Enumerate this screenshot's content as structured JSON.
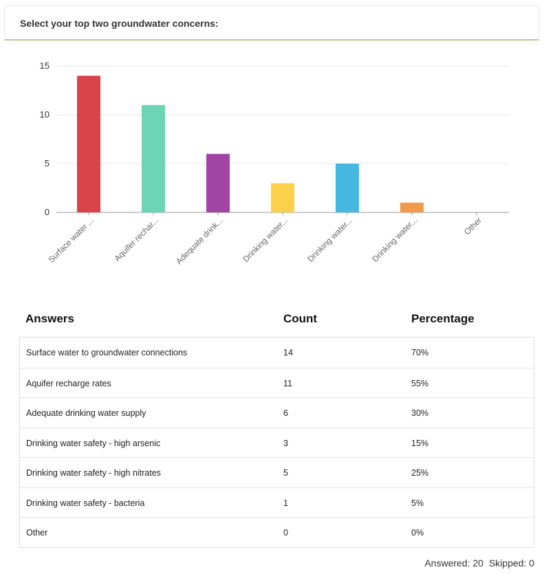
{
  "question": {
    "title": "Select your top two groundwater concerns:"
  },
  "chart_data": {
    "type": "bar",
    "categories": [
      "Surface water ...",
      "Aquifer rechar...",
      "Adequate drink...",
      "Drinking water...",
      "Drinking water...",
      "Drinking water...",
      "Other"
    ],
    "values": [
      14,
      11,
      6,
      3,
      5,
      1,
      0
    ],
    "colors": [
      "#d9434a",
      "#6dd4b6",
      "#a045a4",
      "#fdd14b",
      "#46b9e0",
      "#f2994a",
      "#cccccc"
    ],
    "yticks": [
      0,
      5,
      10,
      15
    ],
    "ylim": [
      0,
      15
    ],
    "grid": true,
    "title": "",
    "xlabel": "",
    "ylabel": ""
  },
  "table": {
    "headers": {
      "answer": "Answers",
      "count": "Count",
      "percentage": "Percentage"
    },
    "rows": [
      {
        "answer": "Surface water to groundwater connections",
        "count": "14",
        "percentage": "70%"
      },
      {
        "answer": "Aquifer recharge rates",
        "count": "11",
        "percentage": "55%"
      },
      {
        "answer": "Adequate drinking water supply",
        "count": "6",
        "percentage": "30%"
      },
      {
        "answer": "Drinking water safety - high arsenic",
        "count": "3",
        "percentage": "15%"
      },
      {
        "answer": "Drinking water safety - high nitrates",
        "count": "5",
        "percentage": "25%"
      },
      {
        "answer": "Drinking water safety - bacteria",
        "count": "1",
        "percentage": "5%"
      },
      {
        "answer": "Other",
        "count": "0",
        "percentage": "0%"
      }
    ]
  },
  "footer": {
    "answered": "Answered: 20",
    "skipped": "Skipped: 0"
  }
}
